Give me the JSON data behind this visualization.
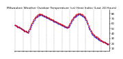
{
  "title": "Milwaukee Weather Outdoor Temperature (vs) Heat Index (Last 24 Hours)",
  "title_fontsize": 3.2,
  "bg_color": "#ffffff",
  "plot_bg_color": "#ffffff",
  "grid_color": "#999999",
  "line1_color": "#0000dd",
  "line2_color": "#dd0000",
  "y_ticks": [
    10,
    20,
    30,
    40,
    50,
    60,
    70,
    80
  ],
  "ylim": [
    5,
    88
  ],
  "n_points": 96,
  "x_tick_interval": 4,
  "temp_values": [
    56,
    55,
    54,
    53,
    52,
    51,
    50,
    49,
    47,
    46,
    45,
    44,
    43,
    42,
    45,
    49,
    53,
    57,
    61,
    65,
    68,
    71,
    73,
    75,
    76,
    77,
    77,
    77,
    76,
    75,
    74,
    73,
    72,
    71,
    70,
    69,
    68,
    67,
    66,
    65,
    64,
    63,
    62,
    61,
    60,
    59,
    58,
    57,
    56,
    55,
    54,
    53,
    52,
    51,
    52,
    54,
    57,
    61,
    65,
    68,
    71,
    73,
    75,
    76,
    77,
    78,
    78,
    77,
    76,
    75,
    73,
    71,
    68,
    64,
    59,
    53,
    48,
    44,
    41,
    38,
    36,
    34,
    32,
    31,
    30,
    28,
    27,
    26,
    25,
    24,
    23,
    22,
    21,
    20,
    19,
    18
  ],
  "heat_values": [
    56,
    55,
    54,
    53,
    52,
    51,
    50,
    49,
    47,
    46,
    45,
    44,
    43,
    42,
    46,
    50,
    55,
    59,
    63,
    67,
    70,
    73,
    75,
    77,
    78,
    79,
    79,
    78,
    77,
    76,
    75,
    74,
    73,
    72,
    71,
    70,
    69,
    68,
    67,
    66,
    65,
    64,
    63,
    62,
    61,
    60,
    59,
    58,
    57,
    56,
    55,
    54,
    53,
    52,
    53,
    56,
    60,
    63,
    67,
    70,
    73,
    75,
    77,
    78,
    79,
    80,
    80,
    79,
    78,
    77,
    75,
    73,
    70,
    66,
    61,
    55,
    50,
    46,
    43,
    40,
    38,
    36,
    34,
    33,
    32,
    30,
    29,
    27,
    26,
    24,
    23,
    22,
    21,
    20,
    19,
    18
  ]
}
